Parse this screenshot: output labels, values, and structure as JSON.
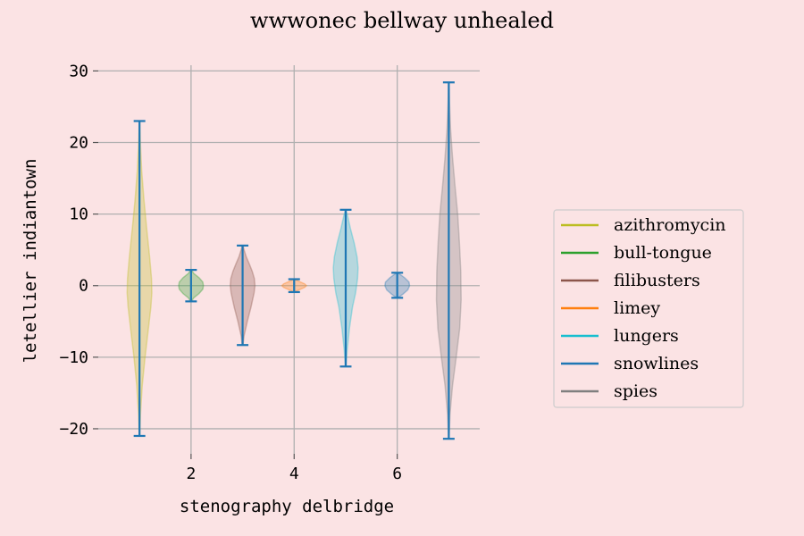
{
  "chart_data": {
    "type": "violin",
    "title": "wwwonec bellway unhealed",
    "xlabel": "stenography delbridge",
    "ylabel": "letellier indiantown",
    "xlim": [
      0.2,
      7.6
    ],
    "ylim": [
      -23.5,
      30.8
    ],
    "xticks": [
      2,
      4,
      6
    ],
    "yticks": [
      -20,
      -10,
      0,
      10,
      20,
      30
    ],
    "grid": true,
    "legend_position": "right",
    "extrema_color": "#1f77b4",
    "series": [
      {
        "name": "azithromycin",
        "position": 1,
        "min": -21.0,
        "max": 23.0,
        "color": "#bcbd22",
        "profile": [
          [
            -21,
            0.02
          ],
          [
            -18,
            0.08
          ],
          [
            -14,
            0.22
          ],
          [
            -10,
            0.45
          ],
          [
            -6,
            0.72
          ],
          [
            -3,
            0.92
          ],
          [
            -1,
            1.0
          ],
          [
            1,
            0.97
          ],
          [
            4,
            0.82
          ],
          [
            8,
            0.58
          ],
          [
            12,
            0.36
          ],
          [
            16,
            0.18
          ],
          [
            20,
            0.07
          ],
          [
            23,
            0.02
          ]
        ]
      },
      {
        "name": "bull-tongue",
        "position": 2,
        "min": -2.2,
        "max": 2.2,
        "color": "#2ca02c",
        "profile": [
          [
            -2.2,
            0.03
          ],
          [
            -1.7,
            0.22
          ],
          [
            -1.1,
            0.65
          ],
          [
            -0.5,
            0.95
          ],
          [
            0,
            1.0
          ],
          [
            0.5,
            0.95
          ],
          [
            1.1,
            0.65
          ],
          [
            1.7,
            0.22
          ],
          [
            2.2,
            0.03
          ]
        ]
      },
      {
        "name": "filibusters",
        "position": 3,
        "min": -8.3,
        "max": 5.6,
        "color": "#8c564b",
        "profile": [
          [
            -8.3,
            0.03
          ],
          [
            -7,
            0.12
          ],
          [
            -5,
            0.38
          ],
          [
            -3,
            0.68
          ],
          [
            -1,
            0.93
          ],
          [
            0,
            1.0
          ],
          [
            1,
            0.95
          ],
          [
            2,
            0.78
          ],
          [
            3,
            0.55
          ],
          [
            4,
            0.3
          ],
          [
            5,
            0.12
          ],
          [
            5.6,
            0.03
          ]
        ]
      },
      {
        "name": "limey",
        "position": 4,
        "min": -0.9,
        "max": 0.9,
        "color": "#ff7f0e",
        "profile": [
          [
            -0.9,
            0.05
          ],
          [
            -0.55,
            0.45
          ],
          [
            -0.25,
            0.85
          ],
          [
            0,
            1.0
          ],
          [
            0.25,
            0.85
          ],
          [
            0.55,
            0.45
          ],
          [
            0.9,
            0.05
          ]
        ]
      },
      {
        "name": "lungers",
        "position": 5,
        "min": -11.3,
        "max": 10.6,
        "color": "#17becf",
        "profile": [
          [
            -11.3,
            0.03
          ],
          [
            -9,
            0.12
          ],
          [
            -6,
            0.3
          ],
          [
            -3,
            0.55
          ],
          [
            -1,
            0.8
          ],
          [
            1,
            0.96
          ],
          [
            2.5,
            1.0
          ],
          [
            4,
            0.92
          ],
          [
            6,
            0.68
          ],
          [
            8,
            0.38
          ],
          [
            10,
            0.12
          ],
          [
            10.6,
            0.03
          ]
        ]
      },
      {
        "name": "snowlines",
        "position": 6,
        "min": -1.7,
        "max": 1.8,
        "color": "#1f77b4",
        "profile": [
          [
            -1.7,
            0.05
          ],
          [
            -1.2,
            0.45
          ],
          [
            -0.6,
            0.85
          ],
          [
            0,
            1.0
          ],
          [
            0.5,
            0.95
          ],
          [
            1.1,
            0.6
          ],
          [
            1.8,
            0.05
          ]
        ]
      },
      {
        "name": "spies",
        "position": 7,
        "min": -21.4,
        "max": 28.4,
        "color": "#7f7f7f",
        "profile": [
          [
            -21.4,
            0.02
          ],
          [
            -18,
            0.1
          ],
          [
            -14,
            0.3
          ],
          [
            -10,
            0.6
          ],
          [
            -6,
            0.88
          ],
          [
            -2,
            1.0
          ],
          [
            2,
            0.97
          ],
          [
            6,
            0.86
          ],
          [
            10,
            0.72
          ],
          [
            14,
            0.5
          ],
          [
            18,
            0.3
          ],
          [
            22,
            0.14
          ],
          [
            26,
            0.05
          ],
          [
            28.4,
            0.02
          ]
        ]
      }
    ]
  }
}
